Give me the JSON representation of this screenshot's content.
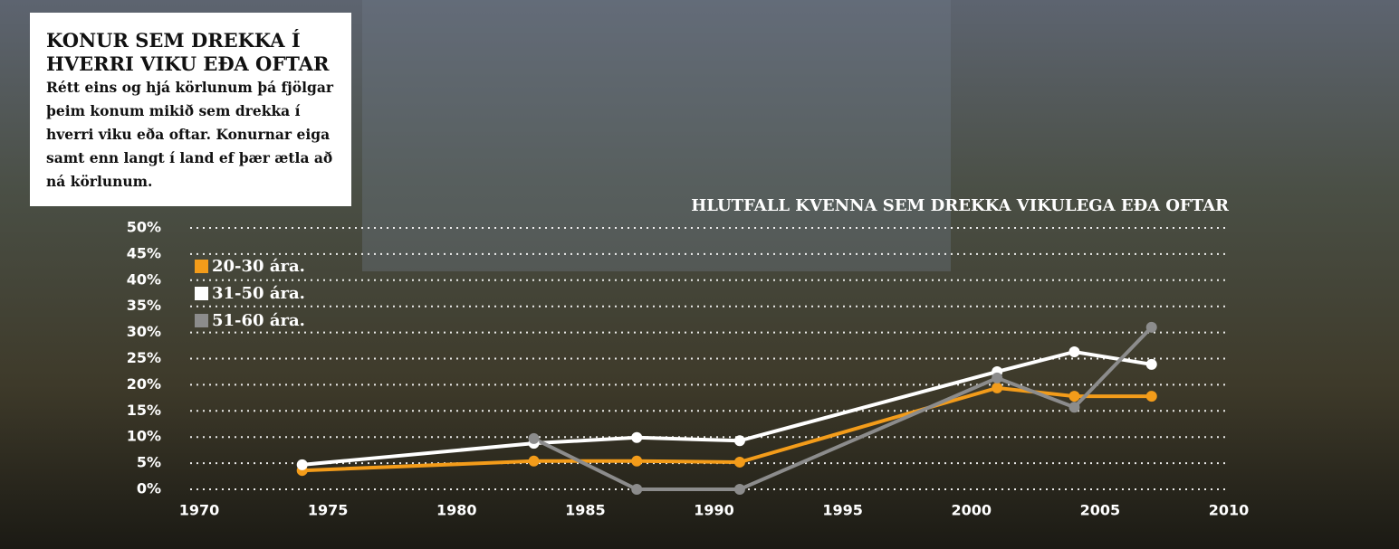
{
  "chart_data": {
    "type": "line",
    "title": "KONUR SEM DREKKA Í HVERRI VIKU EÐA OFTAR",
    "subtitle": "Rétt eins og hjá körlunum þá fjölgar þeim konum mikið sem drekka í hverri viku eða oftar. Konurnar eiga samt enn langt í land ef þær ætla að ná körlunum.",
    "chart_title": "HLUTFALL KVENNA SEM DREKKA VIKULEGA EÐA OFTAR",
    "x": [
      1974,
      1983,
      1987,
      1991,
      2001,
      2004,
      2007
    ],
    "series": [
      {
        "name": "20-30 ára.",
        "color": "#f39c1a",
        "values": [
          3.6,
          5.4,
          5.4,
          5.2,
          19.4,
          17.8,
          17.8
        ]
      },
      {
        "name": "31-50 ára.",
        "color": "#ffffff",
        "values": [
          4.7,
          8.8,
          9.9,
          9.3,
          22.5,
          26.3,
          23.9
        ]
      },
      {
        "name": "51-60 ára.",
        "color": "#8c8c8c",
        "values": [
          null,
          9.7,
          0,
          0,
          21.3,
          15.7,
          31
        ]
      }
    ],
    "xlim": [
      1970,
      2010
    ],
    "xticks": [
      1970,
      1975,
      1980,
      1985,
      1990,
      1995,
      2000,
      2005,
      2010
    ],
    "ylim": [
      0,
      50
    ],
    "yticks": [
      {
        "value": 0,
        "label": "0%"
      },
      {
        "value": 5,
        "label": "5%"
      },
      {
        "value": 10,
        "label": "10%"
      },
      {
        "value": 15,
        "label": "15%"
      },
      {
        "value": 20,
        "label": "20%"
      },
      {
        "value": 25,
        "label": "25%"
      },
      {
        "value": 30,
        "label": "30%"
      },
      {
        "value": 35,
        "label": "35%"
      },
      {
        "value": 40,
        "label": "40%"
      },
      {
        "value": 45,
        "label": "45%"
      },
      {
        "value": 50,
        "label": "50%"
      }
    ],
    "grid": true
  }
}
